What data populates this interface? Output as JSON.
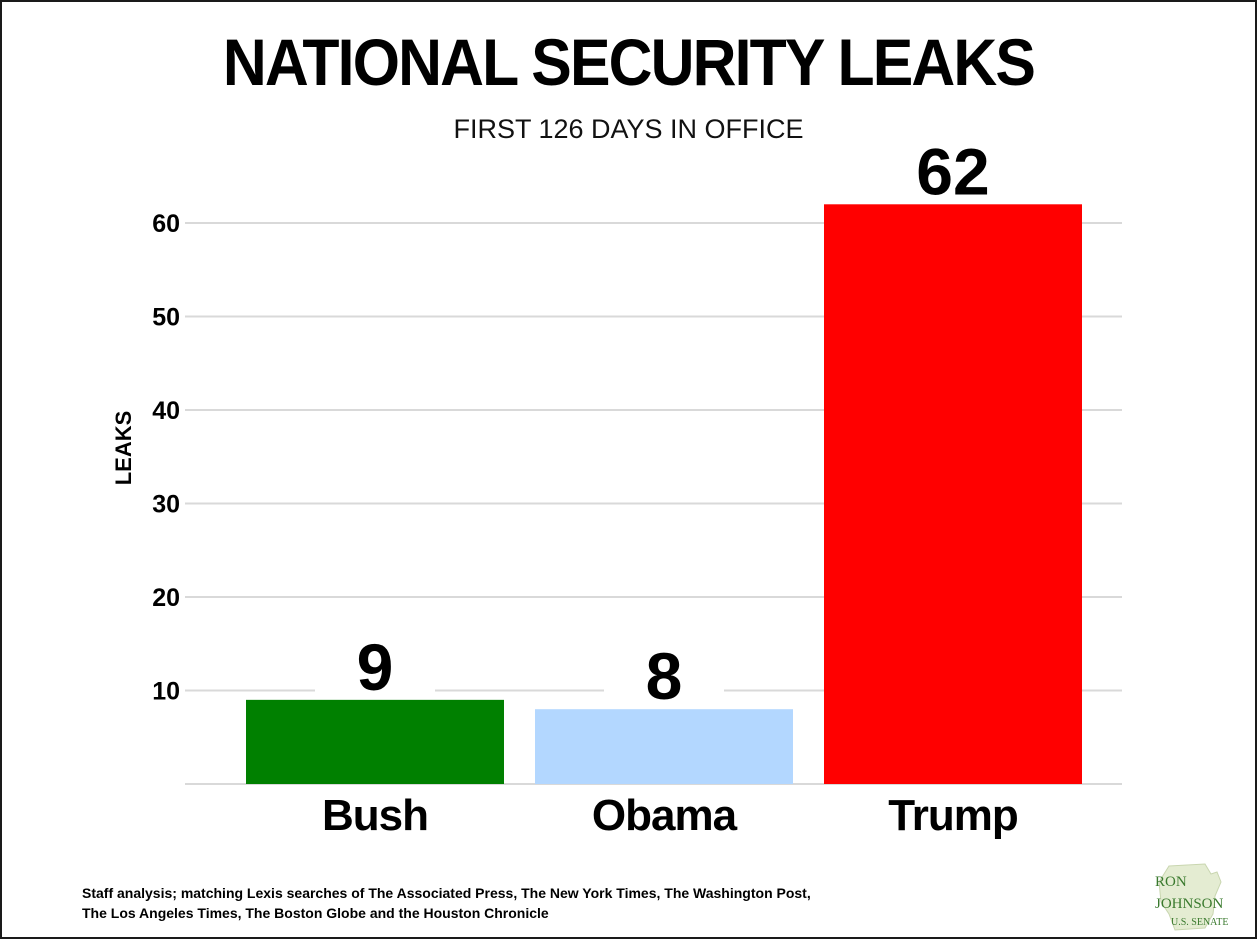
{
  "title": "NATIONAL SECURITY LEAKS",
  "subtitle": "FIRST 126 DAYS IN OFFICE",
  "chart_data": {
    "type": "bar",
    "categories": [
      "Bush",
      "Obama",
      "Trump"
    ],
    "values": [
      9,
      8,
      62
    ],
    "data_labels": [
      "9",
      "8",
      "62"
    ],
    "colors": [
      "#008000",
      "#b3d7ff",
      "#ff0000"
    ],
    "ylabel": "LEAKS",
    "ylim": [
      0,
      65
    ],
    "yticks": [
      10,
      20,
      30,
      40,
      50,
      60
    ],
    "grid": true,
    "legend": "none"
  },
  "footnote": {
    "line1": "Staff analysis; matching Lexis searches of The Associated Press, The New York Times, The Washington Post,",
    "line2": "The Los Angeles Times, The Boston Globe and the Houston Chronicle"
  },
  "logo": {
    "line1": "RON",
    "line2": "JOHNSON",
    "line3": "U.S. SENATE",
    "color": "#3a7a2e"
  }
}
